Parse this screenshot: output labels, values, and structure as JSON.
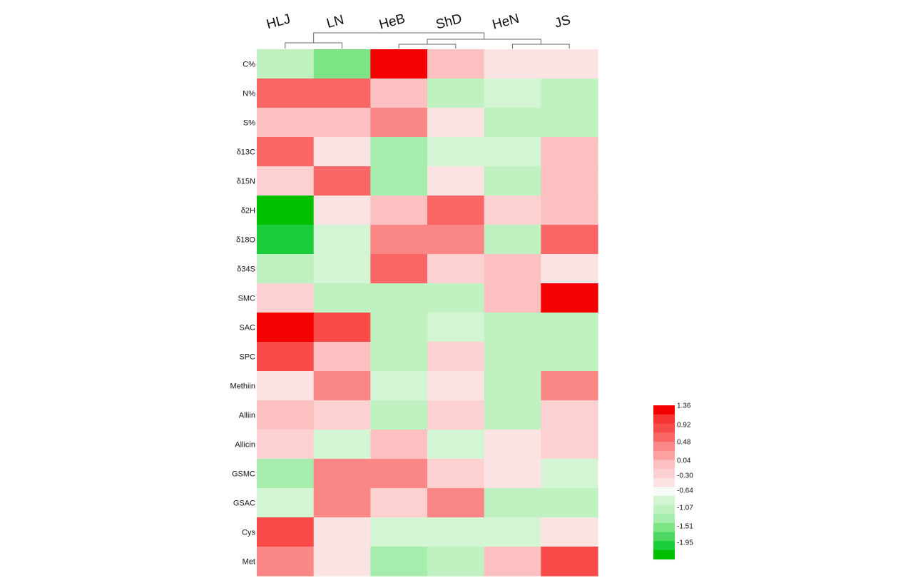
{
  "chart_data": {
    "type": "heatmap",
    "columns": [
      "HLJ",
      "LN",
      "HeB",
      "ShD",
      "HeN",
      "JS"
    ],
    "rows": [
      "C%",
      "N%",
      "S%",
      "δ13C",
      "δ15N",
      "δ2H",
      "δ18O",
      "δ34S",
      "SMC",
      "SAC",
      "SPC",
      "Methiin",
      "Alliin",
      "Allicin",
      "GSMC",
      "GSAC",
      "Cys",
      "Met"
    ],
    "values": [
      [
        -0.5,
        -1.2,
        1.36,
        0.4,
        0.1,
        -0.1
      ],
      [
        0.8,
        0.8,
        0.4,
        -0.5,
        -0.3,
        -0.5
      ],
      [
        0.45,
        0.45,
        0.65,
        -0.1,
        -0.5,
        -0.5
      ],
      [
        0.8,
        -0.1,
        -0.9,
        -0.3,
        -0.3,
        0.45
      ],
      [
        0.15,
        0.85,
        -0.9,
        -0.1,
        -0.5,
        0.45
      ],
      [
        -1.95,
        -0.1,
        0.45,
        0.85,
        0.15,
        0.45
      ],
      [
        -1.6,
        -0.3,
        0.65,
        0.65,
        -0.5,
        0.85
      ],
      [
        -0.7,
        -0.3,
        0.85,
        0.15,
        0.45,
        -0.1
      ],
      [
        0.15,
        -0.7,
        -0.7,
        -0.7,
        0.45,
        1.36
      ],
      [
        1.36,
        1.1,
        -0.5,
        -0.3,
        -0.5,
        -0.5
      ],
      [
        1.1,
        0.45,
        -0.7,
        0.15,
        -0.5,
        -0.5
      ],
      [
        -0.1,
        0.65,
        -0.3,
        -0.1,
        -0.5,
        0.65
      ],
      [
        0.45,
        0.15,
        -0.5,
        0.15,
        -0.5,
        0.15
      ],
      [
        0.15,
        -0.3,
        0.45,
        -0.3,
        -0.1,
        0.15
      ],
      [
        -0.9,
        0.65,
        0.65,
        0.15,
        -0.1,
        -0.3
      ],
      [
        -0.3,
        0.65,
        0.15,
        0.65,
        -0.5,
        -0.5
      ],
      [
        1.1,
        -0.1,
        -0.3,
        -0.3,
        -0.3,
        -0.1
      ],
      [
        0.65,
        -0.1,
        -0.9,
        -0.7,
        0.45,
        1.1
      ]
    ],
    "legend": {
      "ticks": [
        "1.36",
        "0.92",
        "0.48",
        "0.04",
        "-0.30",
        "-0.64",
        "-1.07",
        "-1.51",
        "-1.95"
      ],
      "min": -1.95,
      "max": 1.36,
      "position": "right"
    },
    "colors": {
      "red_scale": [
        "#fbe3e3",
        "#fdd1d1",
        "#fdc0c0",
        "#fca0a0",
        "#fb8686",
        "#f96666",
        "#f94a4a",
        "#f73232",
        "#f50000"
      ],
      "neutral": "#f8fcf8",
      "green_scale": [
        "#d4f5d4",
        "#c0f1c0",
        "#a6ecac",
        "#7de486",
        "#4ed863",
        "#1acd3a",
        "#00c000"
      ]
    },
    "column_dendrogram": "clustered: ((HLJ,LN),((HeB,ShD),(HeN,JS)))"
  }
}
